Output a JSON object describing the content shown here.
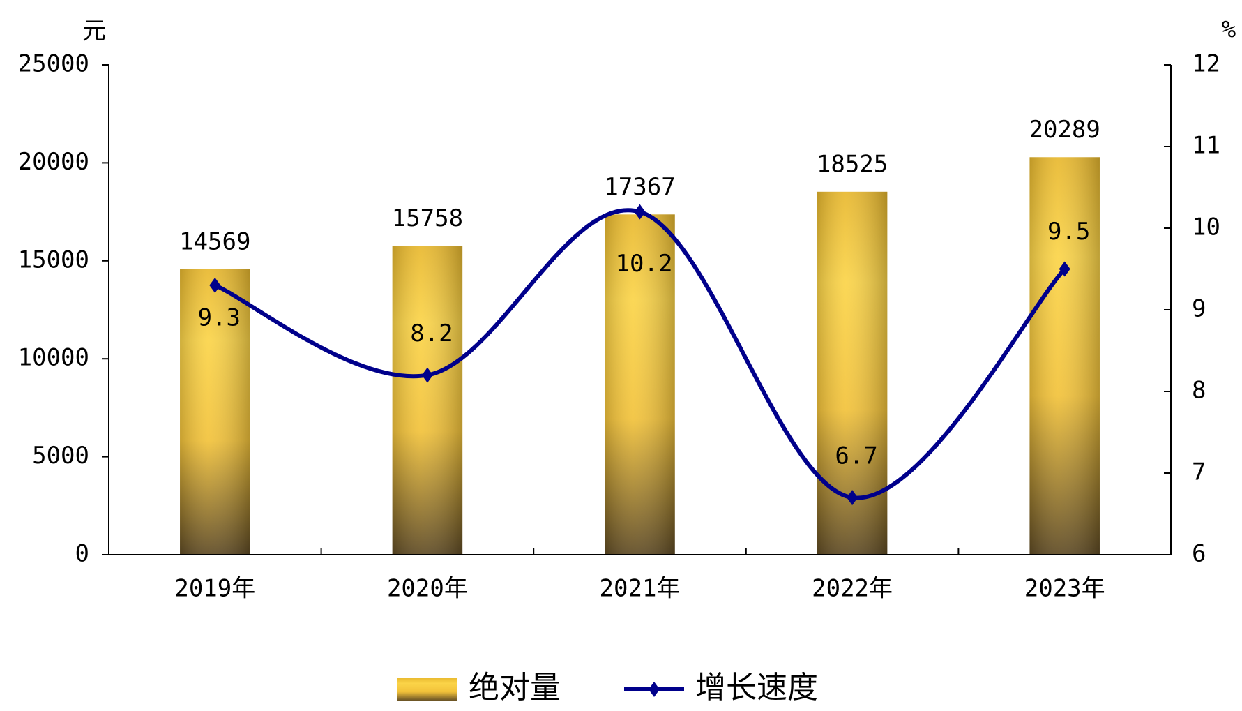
{
  "chart_data": {
    "type": "bar-line",
    "y_label": "元",
    "y2_label": "%",
    "categories": [
      "2019年",
      "2020年",
      "2021年",
      "2022年",
      "2023年"
    ],
    "series": [
      {
        "name": "绝对量",
        "type": "bar",
        "color": "#f2c744",
        "values": [
          14569,
          15758,
          17367,
          18525,
          20289
        ]
      },
      {
        "name": "增长速度",
        "type": "line",
        "color": "#00008b",
        "axis": "y2",
        "values": [
          9.3,
          8.2,
          10.2,
          6.7,
          9.5
        ]
      }
    ],
    "ylim": [
      0,
      25000
    ],
    "yticks": [
      0,
      5000,
      10000,
      15000,
      20000,
      25000
    ],
    "y2lim": [
      6,
      12
    ],
    "y2ticks": [
      6,
      7,
      8,
      9,
      10,
      11,
      12
    ],
    "legend": "bottom"
  }
}
